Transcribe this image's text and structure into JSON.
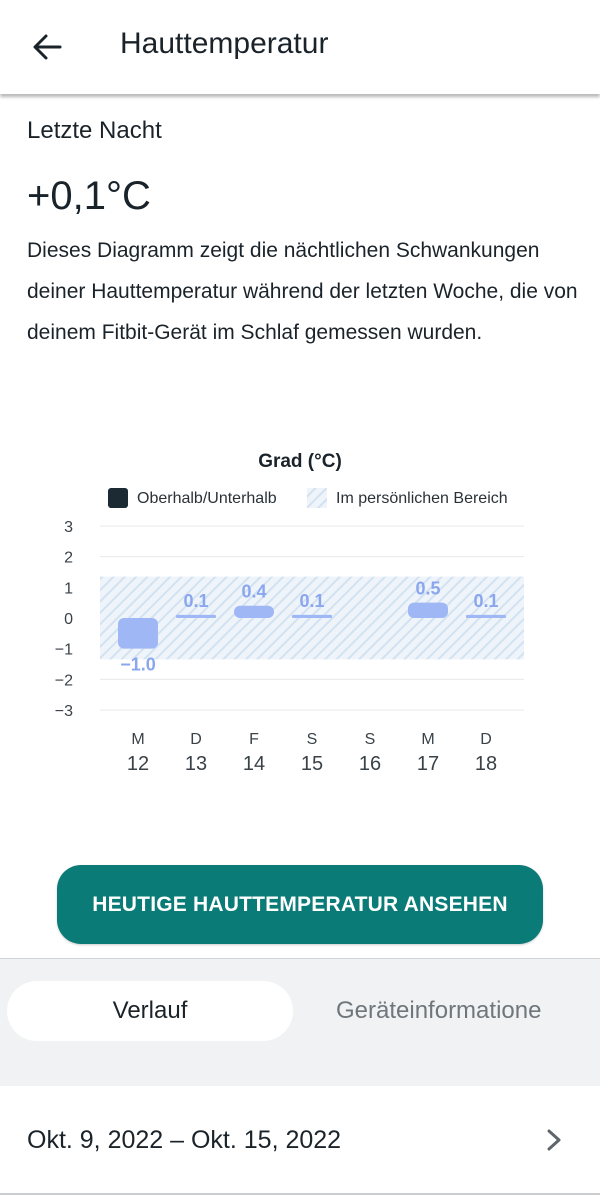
{
  "header": {
    "title": "Hauttemperatur",
    "back_icon": "arrow-back-icon"
  },
  "summary": {
    "section_label": "Letzte Nacht",
    "value": "+0,1°C",
    "description": "Dieses Diagramm zeigt die nächtlichen Schwankungen deiner Hauttemperatur während der letzten Woche, die von deinem Fitbit-Gerät im Schlaf gemessen wurden."
  },
  "chart_data": {
    "type": "bar",
    "title": "Grad (°C)",
    "legend": [
      {
        "label": "Oberhalb/Unterhalb",
        "color": "#1b2a33"
      },
      {
        "label": "Im persönlichen Bereich",
        "color": "#cfe0ef"
      }
    ],
    "ylim": [
      -3,
      3
    ],
    "yticks": [
      "3",
      "2",
      "1",
      "0",
      "−1",
      "−2",
      "−3"
    ],
    "personal_range": [
      -1.35,
      1.35
    ],
    "categories": [
      {
        "day": "M",
        "date": "12",
        "value": -1.0,
        "label": "−1.0"
      },
      {
        "day": "D",
        "date": "13",
        "value": 0.1,
        "label": "0.1"
      },
      {
        "day": "F",
        "date": "14",
        "value": 0.4,
        "label": "0.4"
      },
      {
        "day": "S",
        "date": "15",
        "value": 0.1,
        "label": "0.1"
      },
      {
        "day": "S",
        "date": "16",
        "value": null,
        "label": ""
      },
      {
        "day": "M",
        "date": "17",
        "value": 0.5,
        "label": "0.5"
      },
      {
        "day": "D",
        "date": "18",
        "value": 0.1,
        "label": "0.1"
      }
    ],
    "bar_color": "#9fb7f5",
    "label_color": "#8aa6ee",
    "grid": true
  },
  "cta": {
    "label": "HEUTIGE HAUTTEMPERATUR ANSEHEN",
    "color": "#0b7b77"
  },
  "tabs": [
    {
      "label": "Verlauf",
      "active": true
    },
    {
      "label": "Geräteinformatione",
      "active": false
    }
  ],
  "history": {
    "range_label": "Okt. 9, 2022 – Okt. 15, 2022",
    "chevron_icon": "chevron-right-icon"
  }
}
